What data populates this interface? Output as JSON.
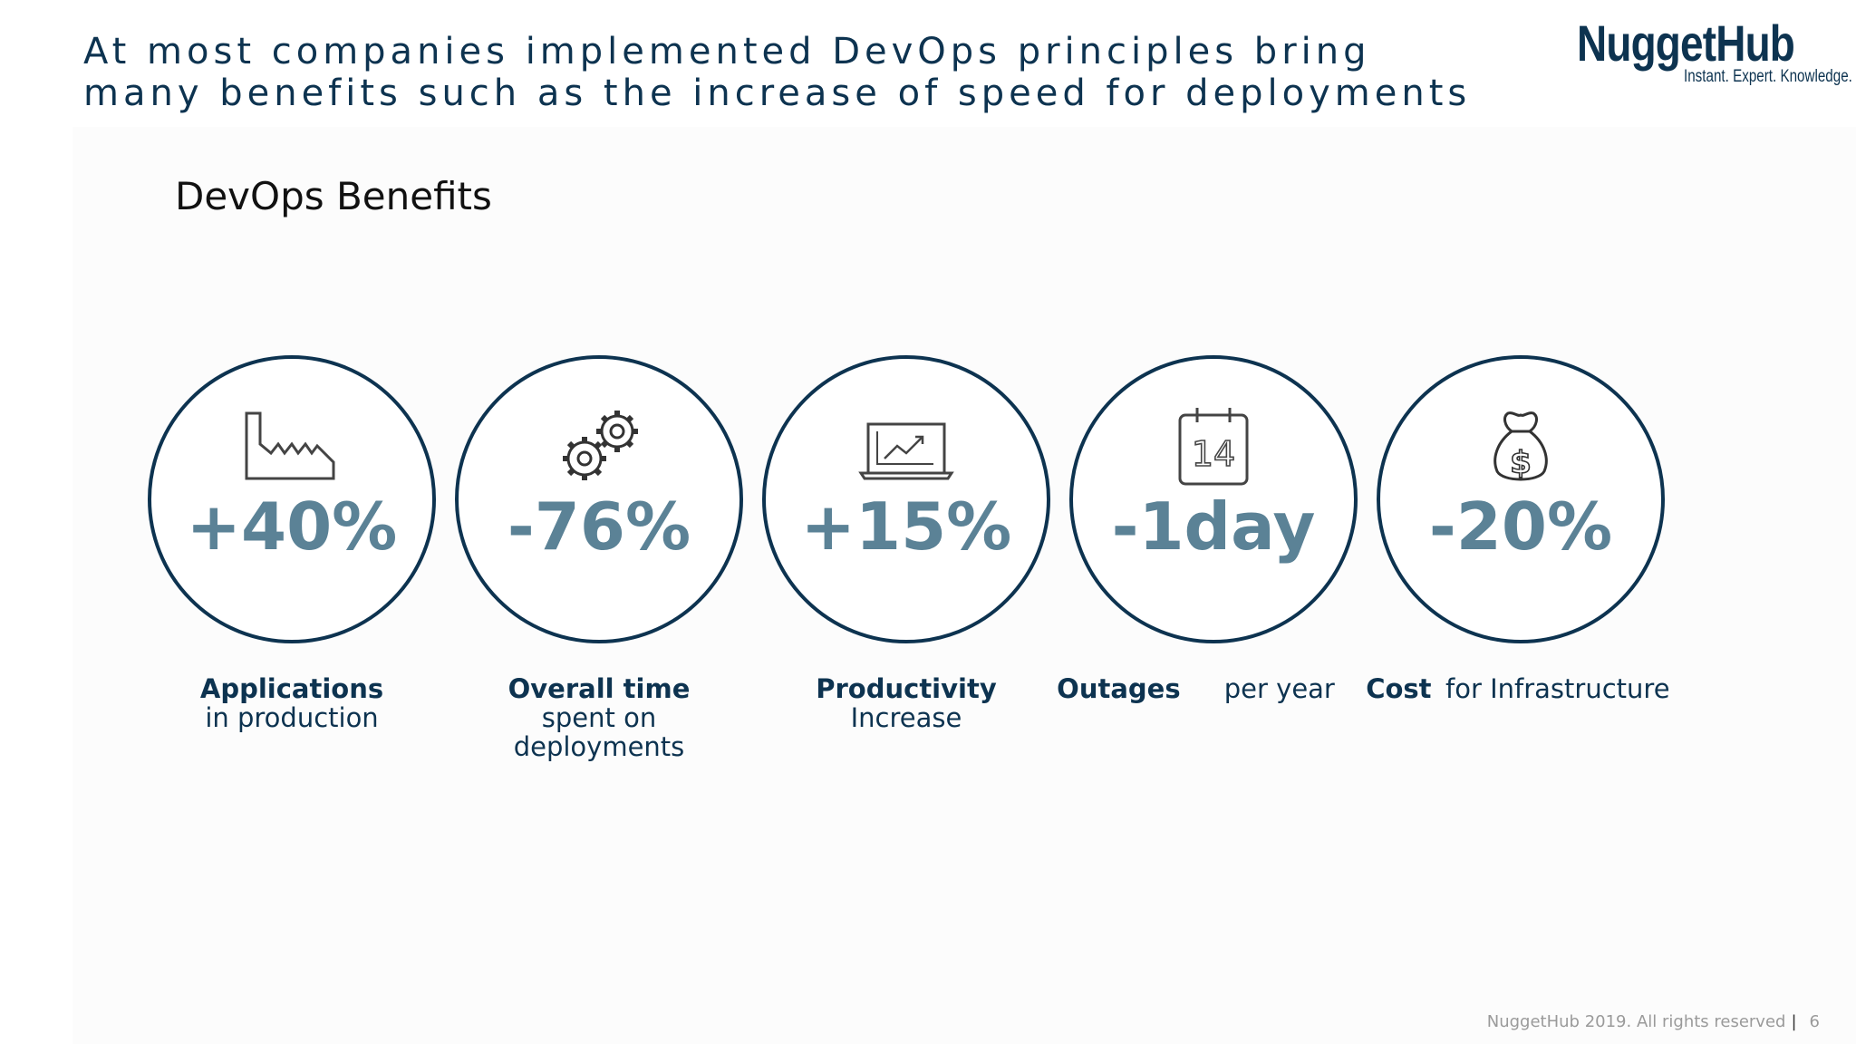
{
  "headline": "At most companies implemented DevOps principles bring many benefits such as the increase of speed for deployments",
  "logo": {
    "name": "NuggetHub",
    "tagline": "Instant. Expert. Knowledge."
  },
  "section_title": "DevOps Benefits",
  "stats": [
    {
      "icon": "factory-icon",
      "value": "+40%",
      "label_bold": "Applications",
      "label_rest": "in production"
    },
    {
      "icon": "gears-icon",
      "value": "-76%",
      "label_bold": "Overall time",
      "label_rest": "spent on deployments"
    },
    {
      "icon": "laptop-chart-icon",
      "value": "+15%",
      "label_bold": "Productivity",
      "label_rest": "Increase"
    },
    {
      "icon": "calendar-icon",
      "value": "-1day",
      "label_bold": "Outages",
      "label_rest": "per year"
    },
    {
      "icon": "money-bag-icon",
      "value": "-20%",
      "label_bold": "Cost",
      "label_rest": "for Infrastructure"
    }
  ],
  "calendar_day": "14",
  "money_symbol": "$",
  "footer": {
    "copyright": "NuggetHub 2019. All rights reserved",
    "separator": "|",
    "page_number": "6"
  },
  "colors": {
    "navy": "#0d3350",
    "value_blue": "#5b8296",
    "footer_gray": "#9a9a9a"
  }
}
